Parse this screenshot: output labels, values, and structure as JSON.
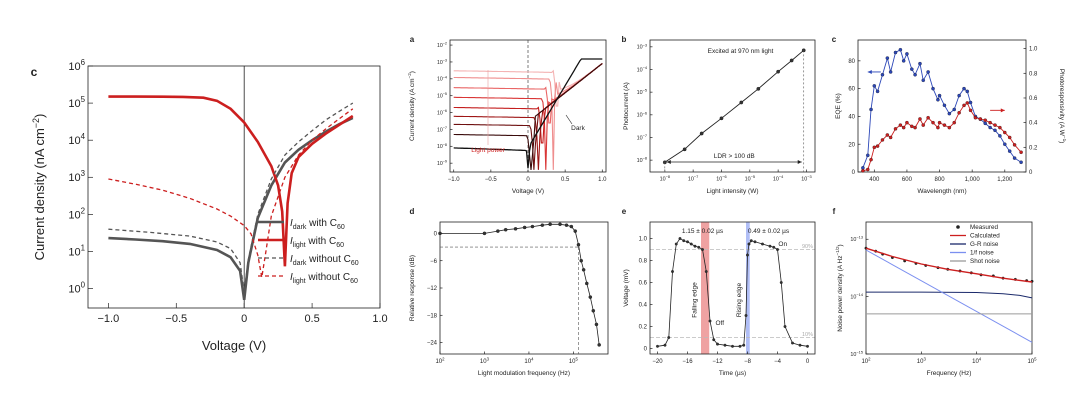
{
  "colors": {
    "dark": "#555555",
    "red": "#cc1f1f",
    "navy": "#1b2a6b",
    "blue": "#2c47b8",
    "lightblue": "#7b8ff0",
    "grey": "#9a9a9a",
    "band_red": "#e87a7a",
    "band_blue": "#8fa3f2"
  },
  "chart_data": [
    {
      "id": "c",
      "panel_letter": "c",
      "type": "line",
      "xlabel": "Voltage (V)",
      "ylabel": "Current density (nA cm",
      "ylabel_sup": "−2",
      "ylabel_end": ")",
      "xlim": [
        -1.15,
        1.0
      ],
      "ylim": [
        0.3,
        1000000
      ],
      "yscale": "log",
      "xticks": [
        -1.0,
        -0.5,
        0.0,
        0.5,
        1.0
      ],
      "xtick_labels": [
        "−1.0",
        "−0.5",
        "0",
        "0.5",
        "1.0"
      ],
      "yticks": [
        1,
        10,
        100,
        1000,
        10000,
        100000,
        1000000
      ],
      "ytick_labels": [
        "10",
        "10",
        "10",
        "10",
        "10",
        "10",
        "10"
      ],
      "ytick_exps": [
        "0",
        "1",
        "2",
        "3",
        "4",
        "5",
        "6"
      ],
      "legend_position": "bottom-right",
      "series": [
        {
          "name": "I",
          "sub": "dark",
          "suffix": " with C",
          "suffix_sub": "60",
          "style": "solid",
          "color": "#555555",
          "x": [
            -1.0,
            -0.8,
            -0.6,
            -0.4,
            -0.2,
            -0.1,
            -0.03,
            0.0,
            0.03,
            0.1,
            0.2,
            0.3,
            0.4,
            0.5,
            0.6,
            0.7,
            0.8
          ],
          "y": [
            23,
            21,
            19,
            16,
            11,
            7,
            3,
            0.5,
            5,
            80,
            600,
            2500,
            5500,
            10000,
            17000,
            27000,
            40000
          ]
        },
        {
          "name": "I",
          "sub": "light",
          "suffix": " with C",
          "suffix_sub": "60",
          "style": "solid",
          "color": "#cc1f1f",
          "x": [
            -1.0,
            -0.8,
            -0.6,
            -0.45,
            -0.3,
            -0.2,
            -0.1,
            0.0,
            0.1,
            0.2,
            0.25,
            0.28,
            0.3,
            0.32,
            0.35,
            0.4,
            0.5,
            0.6,
            0.7,
            0.8
          ],
          "y": [
            150000,
            150000,
            149000,
            147000,
            140000,
            115000,
            70000,
            30000,
            9000,
            2000,
            600,
            120,
            4,
            200,
            1300,
            3500,
            8000,
            15000,
            26000,
            45000
          ]
        },
        {
          "name": "I",
          "sub": "dark",
          "suffix": " without C",
          "suffix_sub": "60",
          "style": "dashed",
          "color": "#555555",
          "x": [
            -1.0,
            -0.7,
            -0.4,
            -0.2,
            -0.1,
            -0.03,
            0.0,
            0.03,
            0.1,
            0.2,
            0.3,
            0.4,
            0.5,
            0.6,
            0.7,
            0.8
          ],
          "y": [
            40,
            33,
            26,
            18,
            12,
            5,
            0.8,
            6,
            100,
            900,
            4000,
            9000,
            18000,
            35000,
            60000,
            100000
          ]
        },
        {
          "name": "I",
          "sub": "light",
          "suffix": " without C",
          "suffix_sub": "60",
          "style": "dashed",
          "color": "#cc1f1f",
          "x": [
            -1.0,
            -0.8,
            -0.6,
            -0.4,
            -0.2,
            -0.1,
            0.0,
            0.05,
            0.1,
            0.13,
            0.16,
            0.2,
            0.3,
            0.4,
            0.5,
            0.6,
            0.7,
            0.8
          ],
          "y": [
            900,
            650,
            450,
            270,
            140,
            90,
            50,
            30,
            8,
            2,
            10,
            90,
            1000,
            4000,
            10000,
            20000,
            38000,
            70000
          ]
        }
      ]
    },
    {
      "id": "a",
      "panel_letter": "a",
      "type": "line",
      "xlabel": "Voltage (V)",
      "ylabel": "Current density (A cm",
      "ylabel_sup": "−2",
      "ylabel_end": ")",
      "xlim": [
        -1.05,
        1.05
      ],
      "ylim": [
        3e-10,
        0.02
      ],
      "yscale": "log",
      "xticks": [
        -1.0,
        -0.5,
        0.0,
        0.5,
        1.0
      ],
      "xtick_labels": [
        "−1.0",
        "−0.5",
        "0",
        "0.5",
        "1.0"
      ],
      "yticks": [
        1e-09,
        1e-08,
        1e-07,
        1e-06,
        1e-05,
        0.0001,
        0.001,
        0.01
      ],
      "ytick_labels": [
        "10",
        "10",
        "10",
        "10",
        "10",
        "10",
        "10",
        "10"
      ],
      "ytick_exps": [
        "−9",
        "−8",
        "−7",
        "−6",
        "−5",
        "−4",
        "−3",
        "−2"
      ],
      "annotations": [
        "Light power",
        "Dark"
      ],
      "curves": {
        "plateau": [
          0.0003,
          0.00012,
          3e-05,
          8e-06,
          2e-06,
          6e-07,
          2e-07,
          5e-08
        ],
        "zero_x": [
          0.39,
          0.34,
          0.29,
          0.24,
          0.19,
          0.14,
          0.08,
          0.04
        ],
        "colors": [
          "#f4b3b3",
          "#ef8e8e",
          "#e96565",
          "#d93636",
          "#c41e1e",
          "#9f1616",
          "#6e1010",
          "#3a0c0c"
        ],
        "dark_plateau": 8e-09
      }
    },
    {
      "id": "b",
      "panel_letter": "b",
      "type": "line",
      "title": "Excited at 970 nm light",
      "xlabel": "Light intensity (W)",
      "ylabel": "Photocurrent (A)",
      "xscale": "log",
      "yscale": "log",
      "xlim": [
        3e-09,
        0.002
      ],
      "ylim": [
        3e-09,
        0.002
      ],
      "xticks": [
        1e-08,
        1e-07,
        1e-06,
        1e-05,
        0.0001,
        0.001
      ],
      "xtick_labels": [
        "10",
        "10",
        "10",
        "10",
        "10",
        "10"
      ],
      "xtick_exps": [
        "−8",
        "−7",
        "−6",
        "−5",
        "−4",
        "−3"
      ],
      "yticks": [
        1e-08,
        1e-07,
        1e-06,
        1e-05,
        0.0001,
        0.001
      ],
      "ytick_labels": [
        "10",
        "10",
        "10",
        "10",
        "10",
        "10"
      ],
      "ytick_exps": [
        "−8",
        "−7",
        "−6",
        "−5",
        "−4",
        "−3"
      ],
      "annotation": "LDR > 100 dB",
      "x": [
        1e-08,
        5e-08,
        2e-07,
        1e-06,
        5e-06,
        2e-05,
        0.0001,
        0.0003,
        0.0008
      ],
      "y": [
        8e-09,
        3e-08,
        1.5e-07,
        7e-07,
        3.5e-06,
        1.4e-05,
        8e-05,
        0.00025,
        0.0007
      ]
    },
    {
      "id": "cc",
      "panel_letter": "c",
      "type": "line",
      "xlabel": "Wavelength (nm)",
      "ylabel": "EQE (%)",
      "y2label": "Photoresponsivity (A W",
      "y2label_sup": "−1",
      "y2label_end": ")",
      "xlim": [
        300,
        1330
      ],
      "ylim": [
        0,
        95
      ],
      "y2lim": [
        0,
        1.07
      ],
      "xticks": [
        400,
        600,
        800,
        1000,
        1200
      ],
      "xtick_labels": [
        "400",
        "600",
        "800",
        "1,000",
        "1,200"
      ],
      "yticks": [
        0,
        20,
        40,
        60,
        80
      ],
      "ytick_labels": [
        "0",
        "20",
        "40",
        "60",
        "80"
      ],
      "y2ticks": [
        0,
        0.2,
        0.4,
        0.6,
        0.8,
        1.0
      ],
      "y2tick_labels": [
        "0",
        "0.2",
        "0.4",
        "0.6",
        "0.8",
        "1.0"
      ],
      "series": [
        {
          "name": "EQE",
          "axis": "left",
          "color": "#2c47b8",
          "x": [
            330,
            360,
            380,
            400,
            420,
            450,
            480,
            500,
            530,
            560,
            580,
            600,
            630,
            650,
            680,
            700,
            730,
            760,
            790,
            800,
            830,
            860,
            890,
            920,
            950,
            970,
            990,
            1020,
            1050,
            1080,
            1110,
            1140,
            1170,
            1200,
            1230,
            1260,
            1300
          ],
          "y": [
            3,
            12,
            45,
            62,
            58,
            70,
            82,
            72,
            86,
            88,
            80,
            85,
            74,
            70,
            78,
            66,
            72,
            60,
            52,
            55,
            48,
            42,
            45,
            55,
            60,
            58,
            50,
            40,
            38,
            35,
            32,
            30,
            26,
            20,
            15,
            10,
            7
          ]
        },
        {
          "name": "Photoresponsivity",
          "axis": "right",
          "color": "#cc1f1f",
          "x": [
            330,
            360,
            380,
            400,
            420,
            450,
            480,
            500,
            530,
            560,
            580,
            600,
            630,
            650,
            680,
            700,
            730,
            760,
            790,
            800,
            830,
            860,
            890,
            920,
            950,
            970,
            990,
            1020,
            1050,
            1080,
            1110,
            1140,
            1170,
            1200,
            1230,
            1260,
            1300
          ],
          "y": [
            0.01,
            0.02,
            0.1,
            0.2,
            0.21,
            0.26,
            0.3,
            0.28,
            0.35,
            0.38,
            0.36,
            0.4,
            0.37,
            0.36,
            0.43,
            0.38,
            0.44,
            0.4,
            0.36,
            0.4,
            0.38,
            0.36,
            0.4,
            0.48,
            0.54,
            0.56,
            0.5,
            0.44,
            0.43,
            0.42,
            0.4,
            0.38,
            0.36,
            0.32,
            0.28,
            0.22,
            0.16
          ]
        }
      ]
    },
    {
      "id": "d",
      "panel_letter": "d",
      "type": "line",
      "xlabel": "Light modulation frequency (Hz)",
      "ylabel": "Relative response (dB)",
      "xscale": "log",
      "xlim": [
        100,
        600000
      ],
      "ylim": [
        -26.5,
        2.5
      ],
      "xticks": [
        100,
        1000,
        10000,
        100000
      ],
      "xtick_labels": [
        "10",
        "10",
        "10",
        "10"
      ],
      "xtick_exps": [
        "2",
        "3",
        "4",
        "5"
      ],
      "yticks": [
        0,
        -6,
        -12,
        -18,
        -24
      ],
      "ytick_labels": [
        "0",
        "−6",
        "−12",
        "−18",
        "−24"
      ],
      "reference_db": -3,
      "cutoff_hz": 130000,
      "x": [
        100,
        1000,
        2000,
        3000,
        5000,
        8000,
        12000,
        20000,
        30000,
        50000,
        70000,
        90000,
        110000,
        130000,
        150000,
        170000,
        200000,
        240000,
        280000,
        330000,
        380000
      ],
      "y": [
        0,
        0,
        0.5,
        0.8,
        1,
        1.3,
        1.5,
        1.8,
        2,
        2,
        1.8,
        1.5,
        0.5,
        -2.5,
        -6,
        -8,
        -11,
        -14,
        -17,
        -20,
        -24.5
      ]
    },
    {
      "id": "e",
      "panel_letter": "e",
      "type": "line",
      "xlabel": "Time (µs)",
      "ylabel": "Voltage (mV)",
      "xlim": [
        -21,
        1
      ],
      "ylim": [
        -0.05,
        1.15
      ],
      "xticks": [
        -20,
        -16,
        -12,
        -8,
        -4,
        0
      ],
      "xtick_labels": [
        "−20",
        "−16",
        "−12",
        "−8",
        "−4",
        "0"
      ],
      "yticks": [
        0,
        0.2,
        0.4,
        0.6,
        0.8,
        1.0
      ],
      "ytick_labels": [
        "0",
        "0.2",
        "0.4",
        "0.6",
        "0.8",
        "1.0"
      ],
      "annotations": {
        "fall": "1.15 ± 0.02 µs",
        "rise": "0.49 ± 0.02 µs",
        "falling_edge": "Falling edge",
        "rising_edge": "Rising edge",
        "on": "On",
        "off": "Off",
        "p90": "90%",
        "p10": "10%"
      },
      "fall_band": [
        -14.2,
        -13.1
      ],
      "rise_band": [
        -8.2,
        -7.7
      ],
      "x": [
        -20,
        -19,
        -18.5,
        -18,
        -17.5,
        -17,
        -16.5,
        -16,
        -15.5,
        -15,
        -14.5,
        -14,
        -13.5,
        -13,
        -12.5,
        -12,
        -11,
        -10,
        -9,
        -8.5,
        -8.2,
        -8,
        -7.8,
        -7.5,
        -7,
        -6,
        -5,
        -4.5,
        -4,
        -3.5,
        -3,
        -2,
        -1,
        0
      ],
      "y": [
        0.02,
        0.03,
        0.1,
        0.7,
        0.95,
        1.0,
        0.98,
        0.97,
        0.95,
        0.93,
        0.92,
        0.9,
        0.7,
        0.25,
        0.08,
        0.04,
        0.03,
        0.02,
        0.02,
        0.03,
        0.3,
        0.85,
        0.95,
        0.98,
        0.97,
        0.95,
        0.93,
        0.92,
        0.9,
        0.6,
        0.2,
        0.05,
        0.03,
        0.02
      ]
    },
    {
      "id": "f",
      "panel_letter": "f",
      "type": "line",
      "xlabel": "Frequency (Hz)",
      "ylabel": "Noise power density (A Hz",
      "ylabel_sup": "−1/2",
      "ylabel_end": ")",
      "xscale": "log",
      "yscale": "log",
      "xlim": [
        100,
        100000
      ],
      "ylim": [
        1e-15,
        2e-13
      ],
      "xticks": [
        100,
        1000,
        10000,
        100000
      ],
      "xtick_labels": [
        "10",
        "10",
        "10",
        "10"
      ],
      "xtick_exps": [
        "2",
        "3",
        "4",
        "5"
      ],
      "yticks": [
        1e-15,
        1e-14,
        1e-13
      ],
      "ytick_labels": [
        "10",
        "10",
        "10"
      ],
      "ytick_exps": [
        "−15",
        "−14",
        "−13"
      ],
      "legend": [
        "Measured",
        "Calculated",
        "G-R noise",
        "1/f noise",
        "Shot noise"
      ],
      "series": [
        {
          "name": "Measured",
          "color": "#222222",
          "x": [
            100,
            150,
            200,
            300,
            500,
            800,
            1200,
            2000,
            3000,
            5000,
            8000,
            12000,
            20000,
            30000,
            50000,
            80000,
            100000
          ],
          "y": [
            7e-14,
            6.2e-14,
            5.5e-14,
            4.8e-14,
            4.2e-14,
            3.8e-14,
            3.5e-14,
            3.2e-14,
            3e-14,
            2.8e-14,
            2.6e-14,
            2.4e-14,
            2.3e-14,
            2.1e-14,
            2e-14,
            1.9e-14,
            1.85e-14
          ]
        },
        {
          "name": "Calculated",
          "color": "#cc1f1f",
          "x": [
            100,
            300,
            1000,
            3000,
            10000,
            30000,
            100000
          ],
          "y": [
            7e-14,
            5e-14,
            3.7e-14,
            3e-14,
            2.5e-14,
            2.1e-14,
            1.8e-14
          ]
        },
        {
          "name": "G-R noise",
          "color": "#1b2a6b",
          "x": [
            100,
            1000,
            10000,
            30000,
            60000,
            100000
          ],
          "y": [
            1.2e-14,
            1.2e-14,
            1.18e-14,
            1.12e-14,
            1.05e-14,
            9.5e-15
          ]
        },
        {
          "name": "1/f noise",
          "color": "#7b8ff0",
          "x": [
            100,
            100000
          ],
          "y": [
            6.5e-14,
            1.6e-15
          ]
        },
        {
          "name": "Shot noise",
          "color": "#9a9a9a",
          "x": [
            100,
            100000
          ],
          "y": [
            5e-15,
            5e-15
          ]
        }
      ]
    }
  ]
}
